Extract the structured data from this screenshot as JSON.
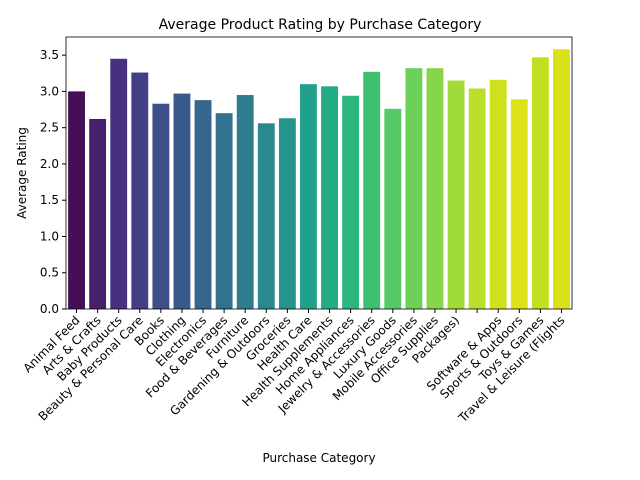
{
  "chart_data": {
    "type": "bar",
    "title": "Average Product Rating by Purchase Category",
    "x_label": "Purchase Category",
    "y_label": "Average Rating",
    "categories": [
      "Animal Feed",
      "Arts & Crafts",
      "Baby Products",
      "Beauty & Personal Care",
      "Books",
      "Clothing",
      "Electronics",
      "Food & Beverages",
      "Furniture",
      "Gardening & Outdoors",
      "Groceries",
      "Health Care",
      "Health Supplements",
      "Home Appliances",
      "Jewelry & Accessories",
      "Luxury Goods",
      "Mobile Accessories",
      "Office Supplies",
      "Packages)",
      null,
      "Software & Apps",
      "Sports & Outdoors",
      "Toys & Games",
      "Travel & Leisure (Flights"
    ],
    "values": [
      3.0,
      2.62,
      3.45,
      3.26,
      2.83,
      2.97,
      2.88,
      2.7,
      2.95,
      2.56,
      2.63,
      3.1,
      3.07,
      2.94,
      3.27,
      2.76,
      3.32,
      3.32,
      3.15,
      3.04,
      3.16,
      2.89,
      3.47,
      3.58
    ],
    "colors": [
      "#440f56",
      "#46216b",
      "#46317e",
      "#433f85",
      "#3f4d8a",
      "#3a5a8c",
      "#35668d",
      "#31728e",
      "#2d7d8e",
      "#29898e",
      "#25948d",
      "#21a08a",
      "#22ab84",
      "#2db67c",
      "#3fc071",
      "#55c966",
      "#6dd059",
      "#86d54b",
      "#a0da3b",
      "#bade2c",
      "#cde11f",
      "#dde318",
      "#c3df22",
      "#d8e219"
    ],
    "ylim": [
      0,
      3.75
    ],
    "yticks": [
      {
        "value": 0,
        "label": "0.0"
      },
      {
        "value": 0.5,
        "label": "0.5"
      },
      {
        "value": 1,
        "label": "1.0"
      },
      {
        "value": 1.5,
        "label": "1.5"
      },
      {
        "value": 2,
        "label": "2.0"
      },
      {
        "value": 2.5,
        "label": "2.5"
      },
      {
        "value": 3,
        "label": "3.0"
      },
      {
        "value": 3.5,
        "label": "3.5"
      }
    ],
    "grid": false
  }
}
